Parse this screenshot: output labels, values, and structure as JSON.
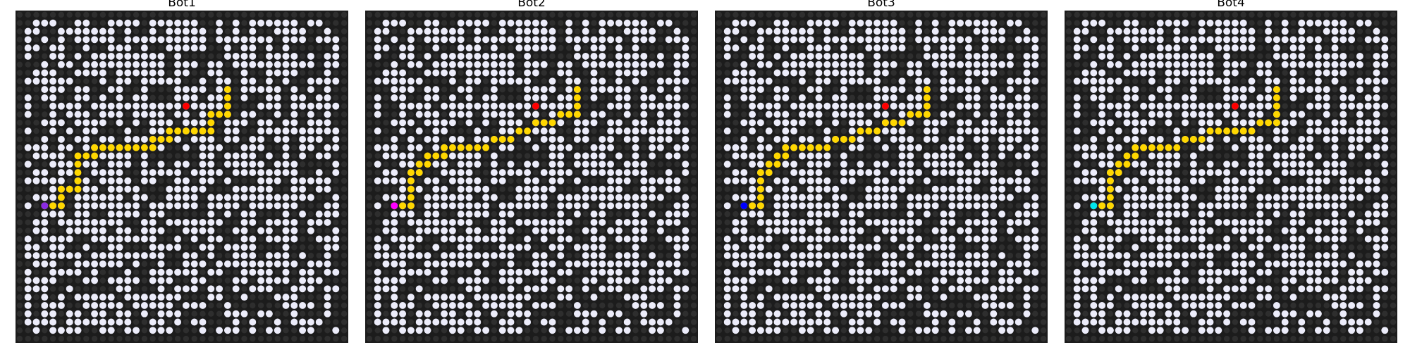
{
  "colors": {
    "background": "#1c1c1c",
    "blocked_cell": "#2e2e2e",
    "open_cell": "#ececfa",
    "path": "#ffd700",
    "goal": "#ff0000"
  },
  "chart_data": [
    {
      "type": "grid",
      "title": "Bot1",
      "grid_size": 40,
      "bot_color": "#8a2be2",
      "start": [
        3,
        23
      ],
      "goal": [
        20,
        11
      ],
      "path": [
        [
          3,
          23
        ],
        [
          4,
          23
        ],
        [
          5,
          23
        ],
        [
          5,
          22
        ],
        [
          5,
          21
        ],
        [
          6,
          21
        ],
        [
          7,
          21
        ],
        [
          7,
          20
        ],
        [
          7,
          19
        ],
        [
          7,
          18
        ],
        [
          7,
          17
        ],
        [
          8,
          17
        ],
        [
          9,
          17
        ],
        [
          9,
          16
        ],
        [
          10,
          16
        ],
        [
          11,
          16
        ],
        [
          12,
          16
        ],
        [
          13,
          16
        ],
        [
          14,
          16
        ],
        [
          15,
          16
        ],
        [
          16,
          16
        ],
        [
          16,
          15
        ],
        [
          17,
          15
        ],
        [
          18,
          15
        ],
        [
          18,
          14
        ],
        [
          19,
          14
        ],
        [
          20,
          14
        ],
        [
          21,
          14
        ],
        [
          22,
          14
        ],
        [
          23,
          14
        ],
        [
          23,
          13
        ],
        [
          23,
          12
        ],
        [
          24,
          12
        ],
        [
          25,
          12
        ],
        [
          25,
          11
        ],
        [
          25,
          10
        ],
        [
          25,
          9
        ]
      ]
    },
    {
      "type": "grid",
      "title": "Bot2",
      "grid_size": 40,
      "bot_color": "#ff00ff",
      "start": [
        3,
        23
      ],
      "goal": [
        20,
        11
      ],
      "path": [
        [
          3,
          23
        ],
        [
          4,
          23
        ],
        [
          5,
          23
        ],
        [
          5,
          22
        ],
        [
          5,
          21
        ],
        [
          5,
          20
        ],
        [
          5,
          19
        ],
        [
          6,
          19
        ],
        [
          6,
          18
        ],
        [
          7,
          18
        ],
        [
          7,
          17
        ],
        [
          8,
          17
        ],
        [
          9,
          17
        ],
        [
          9,
          16
        ],
        [
          10,
          16
        ],
        [
          11,
          16
        ],
        [
          12,
          16
        ],
        [
          13,
          16
        ],
        [
          14,
          16
        ],
        [
          15,
          15
        ],
        [
          16,
          15
        ],
        [
          17,
          15
        ],
        [
          18,
          14
        ],
        [
          19,
          14
        ],
        [
          20,
          13
        ],
        [
          21,
          13
        ],
        [
          22,
          13
        ],
        [
          23,
          12
        ],
        [
          24,
          12
        ],
        [
          25,
          12
        ],
        [
          25,
          11
        ],
        [
          25,
          10
        ],
        [
          25,
          9
        ]
      ]
    },
    {
      "type": "grid",
      "title": "Bot3",
      "grid_size": 40,
      "bot_color": "#0000ff",
      "start": [
        3,
        23
      ],
      "goal": [
        20,
        11
      ],
      "path": [
        [
          3,
          23
        ],
        [
          4,
          23
        ],
        [
          5,
          23
        ],
        [
          5,
          22
        ],
        [
          5,
          21
        ],
        [
          5,
          20
        ],
        [
          5,
          19
        ],
        [
          6,
          19
        ],
        [
          6,
          18
        ],
        [
          7,
          18
        ],
        [
          7,
          17
        ],
        [
          8,
          17
        ],
        [
          8,
          16
        ],
        [
          9,
          16
        ],
        [
          10,
          16
        ],
        [
          11,
          16
        ],
        [
          12,
          16
        ],
        [
          13,
          16
        ],
        [
          14,
          15
        ],
        [
          15,
          15
        ],
        [
          16,
          15
        ],
        [
          17,
          14
        ],
        [
          18,
          14
        ],
        [
          19,
          14
        ],
        [
          20,
          13
        ],
        [
          21,
          13
        ],
        [
          22,
          13
        ],
        [
          23,
          12
        ],
        [
          24,
          12
        ],
        [
          25,
          12
        ],
        [
          25,
          11
        ],
        [
          25,
          10
        ],
        [
          25,
          9
        ]
      ]
    },
    {
      "type": "grid",
      "title": "Bot4",
      "grid_size": 40,
      "bot_color": "#00e5ee",
      "start": [
        3,
        23
      ],
      "goal": [
        20,
        11
      ],
      "path": [
        [
          3,
          23
        ],
        [
          4,
          23
        ],
        [
          5,
          23
        ],
        [
          5,
          22
        ],
        [
          5,
          21
        ],
        [
          5,
          20
        ],
        [
          5,
          19
        ],
        [
          6,
          19
        ],
        [
          6,
          18
        ],
        [
          7,
          18
        ],
        [
          7,
          17
        ],
        [
          8,
          17
        ],
        [
          8,
          16
        ],
        [
          9,
          16
        ],
        [
          10,
          16
        ],
        [
          11,
          16
        ],
        [
          12,
          16
        ],
        [
          13,
          16
        ],
        [
          14,
          15
        ],
        [
          15,
          15
        ],
        [
          16,
          15
        ],
        [
          17,
          14
        ],
        [
          18,
          14
        ],
        [
          19,
          14
        ],
        [
          20,
          14
        ],
        [
          21,
          14
        ],
        [
          22,
          14
        ],
        [
          23,
          13
        ],
        [
          24,
          13
        ],
        [
          25,
          13
        ],
        [
          25,
          12
        ],
        [
          25,
          11
        ],
        [
          25,
          10
        ],
        [
          25,
          9
        ]
      ]
    }
  ]
}
